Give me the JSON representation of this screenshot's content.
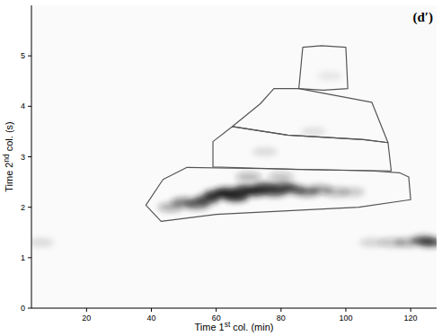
{
  "chart_data": {
    "type": "contour",
    "x_label": "Time 1st col. (min)",
    "y_label": "Time 2nd col. (s)",
    "annotation": "(d′)",
    "xlim": [
      3,
      128
    ],
    "ylim": [
      0,
      6
    ],
    "xticks": [
      20,
      40,
      60,
      80,
      100,
      120
    ],
    "yticks": [
      0,
      1,
      2,
      3,
      4,
      5
    ],
    "color": "#555555",
    "regions": [
      {
        "x": [
          38.3,
          43.6,
          51.0,
          80.0,
          108.0,
          116.7,
          119.4,
          120.0,
          104.0,
          60.0,
          43.0
        ],
        "y": [
          2.04,
          2.55,
          2.79,
          2.76,
          2.72,
          2.68,
          2.6,
          2.15,
          2.0,
          1.86,
          1.72
        ]
      },
      {
        "x": [
          59.0,
          59.0,
          65.0,
          82.0,
          105.5,
          113.0,
          114.0,
          85.0
        ],
        "y": [
          2.8,
          3.3,
          3.6,
          3.43,
          3.34,
          3.28,
          2.72,
          2.75
        ]
      },
      {
        "x": [
          65.0,
          73.6,
          77.8,
          85.5,
          108.0,
          113.0,
          105.5,
          82.0
        ],
        "y": [
          3.6,
          4.05,
          4.35,
          4.35,
          4.08,
          3.28,
          3.34,
          3.43
        ]
      },
      {
        "x": [
          85.5,
          86.7,
          92.5,
          100.0,
          100.6,
          93.0
        ],
        "y": [
          4.35,
          5.17,
          5.2,
          5.17,
          4.35,
          4.32
        ]
      }
    ],
    "spots": [
      {
        "x": 46,
        "y": 2.0,
        "intensity": 0.35
      },
      {
        "x": 50,
        "y": 2.1,
        "intensity": 0.5
      },
      {
        "x": 54,
        "y": 2.05,
        "intensity": 0.6
      },
      {
        "x": 57,
        "y": 2.15,
        "intensity": 0.75
      },
      {
        "x": 60,
        "y": 2.25,
        "intensity": 0.85
      },
      {
        "x": 63,
        "y": 2.3,
        "intensity": 0.9
      },
      {
        "x": 66,
        "y": 2.2,
        "intensity": 0.9
      },
      {
        "x": 69,
        "y": 2.35,
        "intensity": 0.85
      },
      {
        "x": 72,
        "y": 2.3,
        "intensity": 0.85
      },
      {
        "x": 75,
        "y": 2.4,
        "intensity": 0.8
      },
      {
        "x": 78,
        "y": 2.3,
        "intensity": 0.75
      },
      {
        "x": 81,
        "y": 2.4,
        "intensity": 0.7
      },
      {
        "x": 84,
        "y": 2.35,
        "intensity": 0.6
      },
      {
        "x": 88,
        "y": 2.3,
        "intensity": 0.5
      },
      {
        "x": 92,
        "y": 2.35,
        "intensity": 0.4
      },
      {
        "x": 97,
        "y": 2.3,
        "intensity": 0.3
      },
      {
        "x": 102,
        "y": 2.3,
        "intensity": 0.2
      },
      {
        "x": 70,
        "y": 2.6,
        "intensity": 0.3
      },
      {
        "x": 80,
        "y": 2.6,
        "intensity": 0.25
      },
      {
        "x": 75,
        "y": 3.1,
        "intensity": 0.12
      },
      {
        "x": 90,
        "y": 3.5,
        "intensity": 0.1
      },
      {
        "x": 95,
        "y": 4.6,
        "intensity": 0.08
      },
      {
        "x": 108,
        "y": 1.3,
        "intensity": 0.15
      },
      {
        "x": 114,
        "y": 1.3,
        "intensity": 0.25
      },
      {
        "x": 119,
        "y": 1.3,
        "intensity": 0.35
      },
      {
        "x": 124,
        "y": 1.35,
        "intensity": 0.6
      },
      {
        "x": 126,
        "y": 1.3,
        "intensity": 0.7
      },
      {
        "x": 6,
        "y": 1.3,
        "intensity": 0.12
      }
    ]
  }
}
